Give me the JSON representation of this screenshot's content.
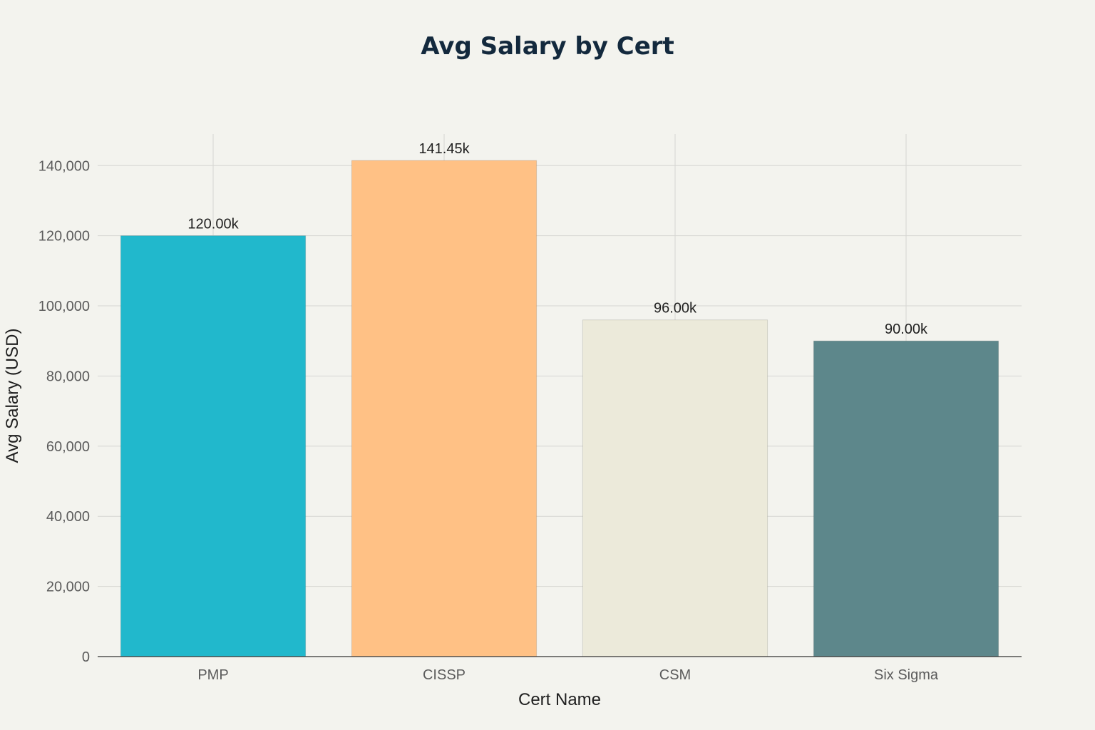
{
  "chart_data": {
    "type": "bar",
    "title": "Avg Salary by Cert",
    "xlabel": "Cert Name",
    "ylabel": "Avg Salary (USD)",
    "categories": [
      "PMP",
      "CISSP",
      "CSM",
      "Six Sigma"
    ],
    "values": [
      120000,
      141450,
      96000,
      90000
    ],
    "data_labels": [
      "120.00k",
      "141.45k",
      "96.00k",
      "90.00k"
    ],
    "colors": [
      "#21b8cc",
      "#ffc185",
      "#eceada",
      "#5d878b"
    ],
    "ylim": [
      0,
      149000
    ],
    "yticks": [
      0,
      20000,
      40000,
      60000,
      80000,
      100000,
      120000,
      140000
    ],
    "ytick_labels": [
      "0",
      "20,000",
      "40,000",
      "60,000",
      "80,000",
      "100,000",
      "120,000",
      "140,000"
    ],
    "grid": true,
    "legend": "none"
  }
}
